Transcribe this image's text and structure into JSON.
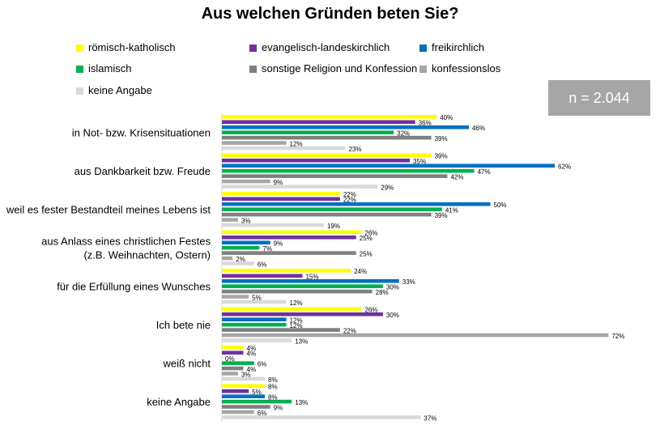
{
  "chart_data": {
    "type": "bar",
    "orientation": "horizontal",
    "title": "Aus welchen Gründen beten Sie?",
    "annotation": "n = 2.044",
    "legend_position": "top",
    "xlim": [
      0,
      75
    ],
    "categories": [
      [
        "in Not- bzw. Krisensituationen"
      ],
      [
        "aus Dankbarkeit bzw. Freude"
      ],
      [
        "weil es fester Bestandteil meines Lebens ist"
      ],
      [
        "aus Anlass eines christlichen Festes",
        "(z.B. Weihnachten, Ostern)"
      ],
      [
        "für die Erfüllung eines Wunsches"
      ],
      [
        "Ich bete nie"
      ],
      [
        "weiß nicht"
      ],
      [
        "keine Angabe"
      ]
    ],
    "series": [
      {
        "name": "römisch-katholisch",
        "color": "#ffff00",
        "values": [
          40,
          39,
          22,
          26,
          24,
          26,
          4,
          8
        ]
      },
      {
        "name": "evangelisch-landeskirchlich",
        "color": "#7030a0",
        "values": [
          36,
          35,
          22,
          25,
          15,
          30,
          4,
          5
        ]
      },
      {
        "name": "freikirchlich",
        "color": "#0070c0",
        "values": [
          46,
          62,
          50,
          9,
          33,
          12,
          0,
          8
        ]
      },
      {
        "name": "islamisch",
        "color": "#00b050",
        "values": [
          32,
          47,
          41,
          7,
          30,
          12,
          6,
          13
        ]
      },
      {
        "name": "sonstige Religion und Konfession",
        "color": "#7f7f7f",
        "values": [
          39,
          42,
          39,
          25,
          28,
          22,
          4,
          9
        ]
      },
      {
        "name": "konfessionslos",
        "color": "#a6a6a6",
        "values": [
          12,
          9,
          3,
          2,
          5,
          72,
          3,
          6
        ]
      },
      {
        "name": "keine Angabe",
        "color": "#d9d9d9",
        "values": [
          23,
          29,
          19,
          6,
          12,
          13,
          8,
          37
        ]
      }
    ]
  }
}
